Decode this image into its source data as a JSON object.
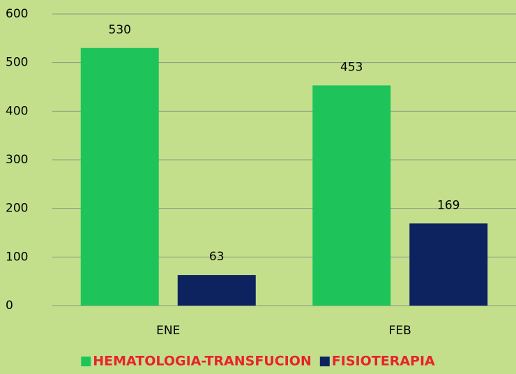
{
  "chart_data": {
    "type": "bar",
    "categories": [
      "ENE",
      "FEB"
    ],
    "series": [
      {
        "name": "HEMATOLOGIA-TRANSFUCION",
        "color": "#1ec45a",
        "values": [
          530,
          453
        ]
      },
      {
        "name": "FISIOTERAPIA",
        "color": "#0c2360",
        "values": [
          63,
          169
        ]
      }
    ],
    "ylim": [
      0,
      600
    ],
    "yticks": [
      0,
      100,
      200,
      300,
      400,
      500,
      600
    ],
    "grid": true,
    "legend": "bottom",
    "legend_text_color": "#e8232b"
  }
}
